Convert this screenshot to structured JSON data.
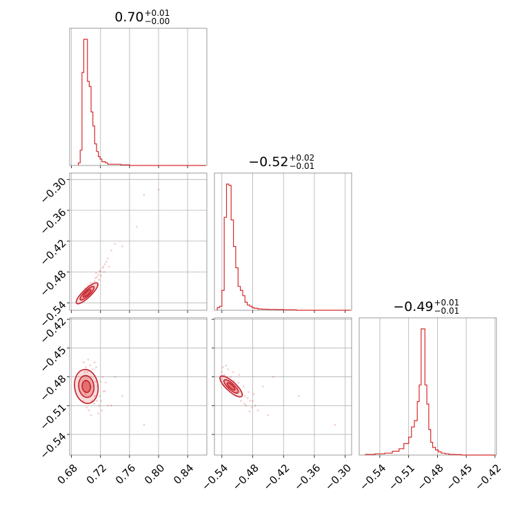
{
  "colors": {
    "series": "#d62728",
    "grid": "#b0b0b0",
    "frame": "#7f7f7f"
  },
  "titles": [
    {
      "main": "0.70",
      "sup": "+0.01",
      "sub": "−0.00"
    },
    {
      "main": "−0.52",
      "sup": "+0.02",
      "sub": "−0.01"
    },
    {
      "main": "−0.49",
      "sup": "+0.01",
      "sub": "−0.01"
    }
  ],
  "axes": {
    "x0": {
      "ticks": [
        0.68,
        0.72,
        0.76,
        0.8,
        0.84
      ],
      "labels": [
        "0.68",
        "0.72",
        "0.76",
        "0.80",
        "0.84"
      ]
    },
    "x1": {
      "ticks": [
        -0.54,
        -0.48,
        -0.42,
        -0.36,
        -0.3
      ],
      "labels": [
        "−0.54",
        "−0.48",
        "−0.42",
        "−0.36",
        "−0.30"
      ]
    },
    "x2": {
      "ticks": [
        -0.54,
        -0.51,
        -0.48,
        -0.45,
        -0.42
      ],
      "labels": [
        "−0.54",
        "−0.51",
        "−0.48",
        "−0.45",
        "−0.42"
      ]
    },
    "y1": {
      "ticks": [
        -0.3,
        -0.36,
        -0.42,
        -0.48,
        -0.54
      ],
      "labels": [
        "−0.30",
        "−0.36",
        "−0.42",
        "−0.48",
        "−0.54"
      ]
    },
    "y2": {
      "ticks": [
        -0.42,
        -0.45,
        -0.48,
        -0.51,
        -0.54
      ],
      "labels": [
        "−0.42",
        "−0.45",
        "−0.48",
        "−0.51",
        "−0.54"
      ]
    }
  },
  "chart_data": {
    "type": "corner",
    "parameters": 3,
    "grid": true,
    "ranges": [
      [
        0.6775,
        0.8665
      ],
      [
        -0.5545,
        -0.2875
      ],
      [
        -0.5615,
        -0.4185
      ]
    ],
    "marginals": [
      {
        "bins": [
          [
            0.6895,
            0.692
          ],
          [
            0.692,
            0.6945
          ],
          [
            0.6945,
            0.697
          ],
          [
            0.697,
            0.6995
          ],
          [
            0.6995,
            0.702
          ],
          [
            0.702,
            0.7045
          ],
          [
            0.7045,
            0.707
          ],
          [
            0.707,
            0.7095
          ],
          [
            0.7095,
            0.712
          ],
          [
            0.712,
            0.7145
          ],
          [
            0.7145,
            0.717
          ],
          [
            0.717,
            0.7195
          ],
          [
            0.7195,
            0.722
          ],
          [
            0.722,
            0.7245
          ],
          [
            0.7245,
            0.727
          ],
          [
            0.727,
            0.73
          ],
          [
            0.73,
            0.734
          ],
          [
            0.734,
            0.74
          ],
          [
            0.74,
            0.748
          ],
          [
            0.748,
            0.76
          ],
          [
            0.76,
            0.865
          ]
        ],
        "counts": [
          0.02,
          0.12,
          0.73,
          0.99,
          0.99,
          0.66,
          0.62,
          0.42,
          0.31,
          0.17,
          0.11,
          0.07,
          0.05,
          0.03,
          0.03,
          0.02,
          0.01,
          0.01,
          0.01,
          0.005,
          0.0
        ]
      },
      {
        "bins": [
          [
            -0.549,
            -0.5445
          ],
          [
            -0.5445,
            -0.54
          ],
          [
            -0.54,
            -0.5355
          ],
          [
            -0.5355,
            -0.531
          ],
          [
            -0.531,
            -0.5265
          ],
          [
            -0.5265,
            -0.522
          ],
          [
            -0.522,
            -0.5175
          ],
          [
            -0.5175,
            -0.513
          ],
          [
            -0.513,
            -0.5085
          ],
          [
            -0.5085,
            -0.504
          ],
          [
            -0.504,
            -0.4995
          ],
          [
            -0.4995,
            -0.495
          ],
          [
            -0.495,
            -0.4905
          ],
          [
            -0.4905,
            -0.486
          ],
          [
            -0.486,
            -0.4815
          ],
          [
            -0.4815,
            -0.477
          ],
          [
            -0.477,
            -0.47
          ],
          [
            -0.47,
            -0.462
          ],
          [
            -0.462,
            -0.45
          ],
          [
            -0.45,
            -0.435
          ],
          [
            -0.435,
            -0.42
          ],
          [
            -0.42,
            -0.395
          ],
          [
            -0.395,
            -0.29
          ]
        ],
        "counts": [
          0.02,
          0.03,
          0.15,
          0.7,
          0.95,
          0.94,
          0.68,
          0.48,
          0.32,
          0.18,
          0.15,
          0.11,
          0.06,
          0.04,
          0.03,
          0.02,
          0.015,
          0.01,
          0.008,
          0.006,
          0.005,
          0.003,
          0.0
        ]
      },
      {
        "bins": [
          [
            -0.555,
            -0.545
          ],
          [
            -0.545,
            -0.535
          ],
          [
            -0.535,
            -0.527
          ],
          [
            -0.527,
            -0.52
          ],
          [
            -0.52,
            -0.515
          ],
          [
            -0.515,
            -0.51
          ],
          [
            -0.51,
            -0.507
          ],
          [
            -0.507,
            -0.504
          ],
          [
            -0.504,
            -0.501
          ],
          [
            -0.501,
            -0.499
          ],
          [
            -0.499,
            -0.497
          ],
          [
            -0.497,
            -0.495
          ],
          [
            -0.495,
            -0.493
          ],
          [
            -0.493,
            -0.491
          ],
          [
            -0.491,
            -0.489
          ],
          [
            -0.489,
            -0.487
          ],
          [
            -0.487,
            -0.485
          ],
          [
            -0.485,
            -0.482
          ],
          [
            -0.482,
            -0.479
          ],
          [
            -0.479,
            -0.476
          ],
          [
            -0.476,
            -0.472
          ],
          [
            -0.472,
            -0.468
          ],
          [
            -0.468,
            -0.462
          ],
          [
            -0.462,
            -0.455
          ],
          [
            -0.455,
            -0.42
          ]
        ],
        "counts": [
          0.005,
          0.01,
          0.015,
          0.03,
          0.05,
          0.09,
          0.14,
          0.22,
          0.27,
          0.42,
          0.55,
          0.99,
          0.99,
          0.55,
          0.4,
          0.2,
          0.1,
          0.06,
          0.04,
          0.025,
          0.015,
          0.01,
          0.005,
          0.003,
          0.0
        ]
      }
    ],
    "joint": [
      {
        "xi": 0,
        "yi": 1,
        "mean": [
          0.7015,
          -0.5215
        ],
        "sd": [
          0.0055,
          0.0075
        ],
        "corr": 0.85,
        "scatter": [
          [
            0.698,
            -0.525
          ],
          [
            0.7,
            -0.522
          ],
          [
            0.702,
            -0.518
          ],
          [
            0.705,
            -0.513
          ],
          [
            0.708,
            -0.507
          ],
          [
            0.71,
            -0.502
          ],
          [
            0.712,
            -0.498
          ],
          [
            0.715,
            -0.49
          ],
          [
            0.717,
            -0.486
          ],
          [
            0.72,
            -0.479
          ],
          [
            0.723,
            -0.472
          ],
          [
            0.726,
            -0.465
          ],
          [
            0.73,
            -0.454
          ],
          [
            0.735,
            -0.438
          ],
          [
            0.74,
            -0.425
          ],
          [
            0.696,
            -0.53
          ],
          [
            0.694,
            -0.532
          ],
          [
            0.701,
            -0.515
          ],
          [
            0.706,
            -0.501
          ],
          [
            0.711,
            -0.508
          ],
          [
            0.704,
            -0.528
          ],
          [
            0.713,
            -0.492
          ],
          [
            0.718,
            -0.495
          ],
          [
            0.721,
            -0.487
          ],
          [
            0.709,
            -0.518
          ],
          [
            0.699,
            -0.512
          ],
          [
            0.728,
            -0.46
          ],
          [
            0.77,
            -0.392
          ],
          [
            0.78,
            -0.33
          ],
          [
            0.8,
            -0.32
          ],
          [
            0.75,
            -0.43
          ],
          [
            0.732,
            -0.47
          ],
          [
            0.725,
            -0.48
          ],
          [
            0.716,
            -0.505
          ],
          [
            0.703,
            -0.506
          ],
          [
            0.697,
            -0.518
          ],
          [
            0.707,
            -0.523
          ],
          [
            0.714,
            -0.482
          ],
          [
            0.719,
            -0.478
          ],
          [
            0.724,
            -0.47
          ]
        ],
        "levels": [
          {
            "k": 0.6,
            "opacity": 0.45
          },
          {
            "k": 1.1,
            "opacity": 0.28
          },
          {
            "k": 1.7,
            "opacity": 0.16
          }
        ]
      },
      {
        "xi": 0,
        "yi": 2,
        "mean": [
          0.7005,
          -0.49
        ],
        "sd": [
          0.006,
          0.0065
        ],
        "corr": -0.1,
        "scatter": [
          [
            0.695,
            -0.48
          ],
          [
            0.698,
            -0.475
          ],
          [
            0.7,
            -0.47
          ],
          [
            0.702,
            -0.475
          ],
          [
            0.705,
            -0.48
          ],
          [
            0.708,
            -0.49
          ],
          [
            0.71,
            -0.495
          ],
          [
            0.712,
            -0.5
          ],
          [
            0.715,
            -0.505
          ],
          [
            0.718,
            -0.51
          ],
          [
            0.72,
            -0.485
          ],
          [
            0.723,
            -0.48
          ],
          [
            0.726,
            -0.495
          ],
          [
            0.73,
            -0.51
          ],
          [
            0.696,
            -0.505
          ],
          [
            0.701,
            -0.512
          ],
          [
            0.704,
            -0.515
          ],
          [
            0.706,
            -0.468
          ],
          [
            0.709,
            -0.472
          ],
          [
            0.711,
            -0.508
          ],
          [
            0.699,
            -0.498
          ],
          [
            0.714,
            -0.47
          ],
          [
            0.719,
            -0.5
          ],
          [
            0.722,
            -0.515
          ],
          [
            0.727,
            -0.486
          ],
          [
            0.735,
            -0.51
          ],
          [
            0.74,
            -0.48
          ],
          [
            0.75,
            -0.5
          ],
          [
            0.78,
            -0.53
          ],
          [
            0.697,
            -0.465
          ],
          [
            0.703,
            -0.462
          ],
          [
            0.707,
            -0.52
          ],
          [
            0.713,
            -0.485
          ],
          [
            0.716,
            -0.49
          ],
          [
            0.721,
            -0.505
          ],
          [
            0.708,
            -0.505
          ],
          [
            0.7,
            -0.485
          ],
          [
            0.724,
            -0.495
          ],
          [
            0.717,
            -0.518
          ],
          [
            0.712,
            -0.465
          ]
        ],
        "levels": [
          {
            "k": 0.6,
            "opacity": 0.45
          },
          {
            "k": 1.1,
            "opacity": 0.28
          },
          {
            "k": 1.7,
            "opacity": 0.16
          }
        ]
      },
      {
        "xi": 1,
        "yi": 2,
        "mean": [
          -0.522,
          -0.49
        ],
        "sd": [
          0.008,
          0.004
        ],
        "corr": -0.8,
        "scatter": [
          [
            -0.54,
            -0.475
          ],
          [
            -0.535,
            -0.478
          ],
          [
            -0.53,
            -0.48
          ],
          [
            -0.525,
            -0.485
          ],
          [
            -0.52,
            -0.488
          ],
          [
            -0.515,
            -0.49
          ],
          [
            -0.51,
            -0.492
          ],
          [
            -0.505,
            -0.495
          ],
          [
            -0.5,
            -0.498
          ],
          [
            -0.495,
            -0.5
          ],
          [
            -0.49,
            -0.502
          ],
          [
            -0.485,
            -0.505
          ],
          [
            -0.48,
            -0.505
          ],
          [
            -0.475,
            -0.51
          ],
          [
            -0.47,
            -0.515
          ],
          [
            -0.538,
            -0.47
          ],
          [
            -0.532,
            -0.468
          ],
          [
            -0.527,
            -0.492
          ],
          [
            -0.523,
            -0.48
          ],
          [
            -0.518,
            -0.475
          ],
          [
            -0.513,
            -0.5
          ],
          [
            -0.508,
            -0.486
          ],
          [
            -0.503,
            -0.505
          ],
          [
            -0.498,
            -0.49
          ],
          [
            -0.493,
            -0.51
          ],
          [
            -0.488,
            -0.496
          ],
          [
            -0.482,
            -0.512
          ],
          [
            -0.478,
            -0.498
          ],
          [
            -0.46,
            -0.49
          ],
          [
            -0.45,
            -0.52
          ],
          [
            -0.44,
            -0.48
          ],
          [
            -0.39,
            -0.5
          ],
          [
            -0.32,
            -0.53
          ],
          [
            -0.542,
            -0.482
          ],
          [
            -0.528,
            -0.472
          ],
          [
            -0.516,
            -0.484
          ],
          [
            -0.506,
            -0.478
          ],
          [
            -0.496,
            -0.508
          ],
          [
            -0.486,
            -0.516
          ],
          [
            -0.512,
            -0.496
          ]
        ],
        "levels": [
          {
            "k": 0.6,
            "opacity": 0.45
          },
          {
            "k": 1.1,
            "opacity": 0.28
          },
          {
            "k": 1.7,
            "opacity": 0.16
          }
        ]
      }
    ]
  }
}
